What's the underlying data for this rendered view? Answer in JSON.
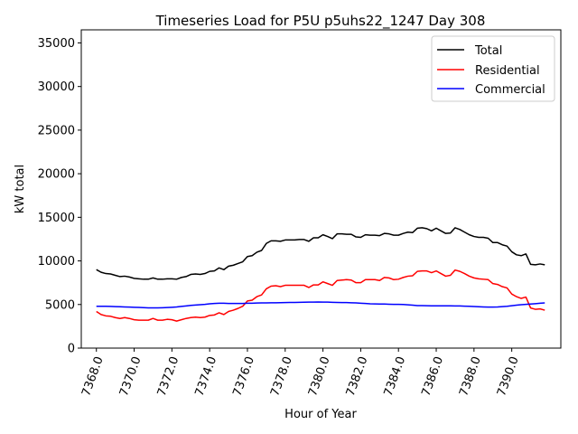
{
  "chart_data": {
    "type": "line",
    "title": "Timeseries Load for P5U p5uhs22_1247  Day 308",
    "xlabel": "Hour of Year",
    "ylabel": "kW total",
    "xlim": [
      7367.2,
      7392.6
    ],
    "ylim": [
      0,
      36500
    ],
    "xticks": [
      7368,
      7370,
      7372,
      7374,
      7376,
      7378,
      7380,
      7382,
      7384,
      7386,
      7388,
      7390
    ],
    "xtick_labels": [
      "7368.0",
      "7370.0",
      "7372.0",
      "7374.0",
      "7376.0",
      "7378.0",
      "7380.0",
      "7382.0",
      "7384.0",
      "7386.0",
      "7388.0",
      "7390.0"
    ],
    "yticks": [
      0,
      5000,
      10000,
      15000,
      20000,
      25000,
      30000,
      35000
    ],
    "ytick_labels": [
      "0",
      "5000",
      "10000",
      "15000",
      "20000",
      "25000",
      "30000",
      "35000"
    ],
    "legend_position": "top-right",
    "x": [
      7368.0,
      7368.25,
      7368.5,
      7368.75,
      7369.0,
      7369.25,
      7369.5,
      7369.75,
      7370.0,
      7370.25,
      7370.5,
      7370.75,
      7371.0,
      7371.25,
      7371.5,
      7371.75,
      7372.0,
      7372.25,
      7372.5,
      7372.75,
      7373.0,
      7373.25,
      7373.5,
      7373.75,
      7374.0,
      7374.25,
      7374.5,
      7374.75,
      7375.0,
      7375.25,
      7375.5,
      7375.75,
      7376.0,
      7376.25,
      7376.5,
      7376.75,
      7377.0,
      7377.25,
      7377.5,
      7377.75,
      7378.0,
      7378.25,
      7378.5,
      7378.75,
      7379.0,
      7379.25,
      7379.5,
      7379.75,
      7380.0,
      7380.25,
      7380.5,
      7380.75,
      7381.0,
      7381.25,
      7381.5,
      7381.75,
      7382.0,
      7382.25,
      7382.5,
      7382.75,
      7383.0,
      7383.25,
      7383.5,
      7383.75,
      7384.0,
      7384.25,
      7384.5,
      7384.75,
      7385.0,
      7385.25,
      7385.5,
      7385.75,
      7386.0,
      7386.25,
      7386.5,
      7386.75,
      7387.0,
      7387.25,
      7387.5,
      7387.75,
      7388.0,
      7388.25,
      7388.5,
      7388.75,
      7389.0,
      7389.25,
      7389.5,
      7389.75,
      7390.0,
      7390.25,
      7390.5,
      7390.75,
      7391.0,
      7391.25,
      7391.5,
      7391.75
    ],
    "series": [
      {
        "name": "Total",
        "color": "#000000",
        "values": [
          9000,
          8700,
          8550,
          8500,
          8350,
          8200,
          8250,
          8150,
          8000,
          7950,
          7900,
          7900,
          8050,
          7900,
          7900,
          7950,
          7950,
          7900,
          8100,
          8200,
          8450,
          8500,
          8450,
          8550,
          8800,
          8850,
          9200,
          9000,
          9400,
          9500,
          9700,
          9900,
          10500,
          10600,
          11000,
          11200,
          12000,
          12300,
          12300,
          12250,
          12400,
          12400,
          12400,
          12450,
          12450,
          12250,
          12650,
          12650,
          13000,
          12800,
          12550,
          13100,
          13100,
          13050,
          13050,
          12750,
          12700,
          13000,
          12950,
          12950,
          12900,
          13150,
          13100,
          12950,
          12950,
          13150,
          13300,
          13250,
          13750,
          13800,
          13700,
          13450,
          13750,
          13450,
          13150,
          13200,
          13800,
          13600,
          13300,
          13000,
          12800,
          12700,
          12700,
          12600,
          12100,
          12100,
          11850,
          11700,
          11050,
          10700,
          10600,
          10800,
          9600,
          9550,
          9650,
          9550
        ]
      },
      {
        "name": "Residential",
        "color": "#ff0000",
        "values": [
          4200,
          3850,
          3700,
          3650,
          3500,
          3400,
          3500,
          3400,
          3250,
          3200,
          3200,
          3200,
          3400,
          3200,
          3200,
          3300,
          3250,
          3100,
          3250,
          3400,
          3500,
          3550,
          3500,
          3550,
          3750,
          3800,
          4050,
          3850,
          4200,
          4350,
          4550,
          4800,
          5400,
          5500,
          5900,
          6100,
          6800,
          7100,
          7150,
          7050,
          7200,
          7200,
          7200,
          7200,
          7200,
          6950,
          7250,
          7250,
          7600,
          7400,
          7200,
          7750,
          7800,
          7850,
          7800,
          7500,
          7500,
          7850,
          7850,
          7850,
          7750,
          8100,
          8050,
          7850,
          7900,
          8100,
          8250,
          8300,
          8800,
          8850,
          8850,
          8650,
          8850,
          8550,
          8250,
          8350,
          8950,
          8800,
          8550,
          8250,
          8050,
          7950,
          7900,
          7850,
          7400,
          7300,
          7050,
          6900,
          6200,
          5900,
          5700,
          5850,
          4600,
          4450,
          4500,
          4350
        ]
      },
      {
        "name": "Commercial",
        "color": "#0000ff",
        "values": [
          4800,
          4800,
          4800,
          4780,
          4760,
          4740,
          4720,
          4700,
          4680,
          4660,
          4640,
          4620,
          4620,
          4620,
          4630,
          4650,
          4680,
          4720,
          4780,
          4840,
          4900,
          4940,
          4980,
          5020,
          5080,
          5120,
          5140,
          5140,
          5120,
          5120,
          5120,
          5120,
          5150,
          5150,
          5170,
          5180,
          5190,
          5200,
          5200,
          5210,
          5220,
          5230,
          5240,
          5250,
          5260,
          5270,
          5280,
          5290,
          5280,
          5270,
          5250,
          5240,
          5220,
          5220,
          5200,
          5180,
          5150,
          5120,
          5080,
          5070,
          5060,
          5050,
          5030,
          5020,
          5010,
          5000,
          4960,
          4920,
          4880,
          4870,
          4860,
          4850,
          4850,
          4850,
          4850,
          4850,
          4840,
          4830,
          4810,
          4790,
          4770,
          4750,
          4720,
          4700,
          4700,
          4720,
          4760,
          4800,
          4860,
          4920,
          4980,
          5020,
          5060,
          5100,
          5140,
          5180
        ]
      }
    ]
  }
}
